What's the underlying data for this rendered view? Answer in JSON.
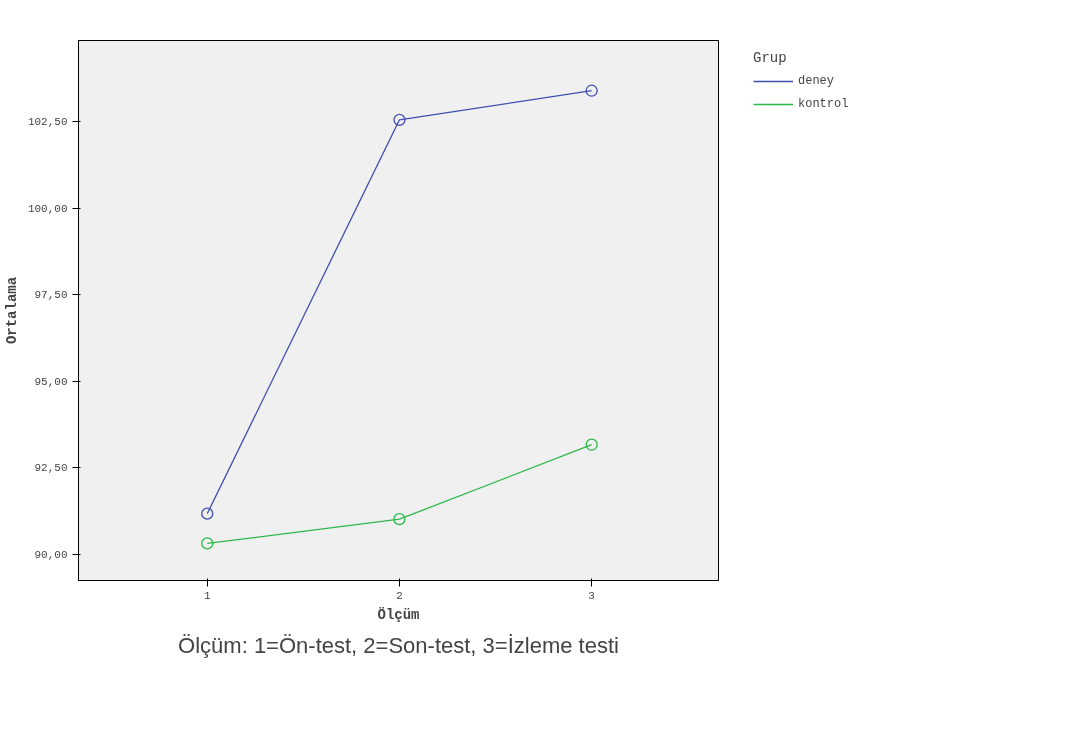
{
  "chart_data": {
    "type": "line",
    "xlabel": "Ölçüm",
    "ylabel": "Ortalama",
    "legend_title": "Grup",
    "x": [
      1,
      2,
      3
    ],
    "series": [
      {
        "name": "deney",
        "color": "#3f4fb0",
        "values": [
          91.18,
          102.55,
          103.39
        ]
      },
      {
        "name": "kontrol",
        "color": "#2db84a",
        "values": [
          90.32,
          91.02,
          93.17
        ]
      }
    ],
    "xlim": [
      0.33,
      3.66
    ],
    "xticks": [
      1,
      2,
      3
    ],
    "ylim": [
      89.25,
      104.84
    ],
    "yticks": [
      {
        "value": 90,
        "label": "90,00"
      },
      {
        "value": 92.5,
        "label": "92,50"
      },
      {
        "value": 95,
        "label": "95,00"
      },
      {
        "value": 97.5,
        "label": "97,50"
      },
      {
        "value": 100,
        "label": "100,00"
      },
      {
        "value": 102.5,
        "label": "102,50"
      }
    ],
    "marker": "circle",
    "line_style": "solid",
    "grid": false,
    "legend": "right",
    "annotations": [
      "Ölçüm: 1=Ön-test, 2=Son-test, 3=İzleme testi"
    ]
  }
}
